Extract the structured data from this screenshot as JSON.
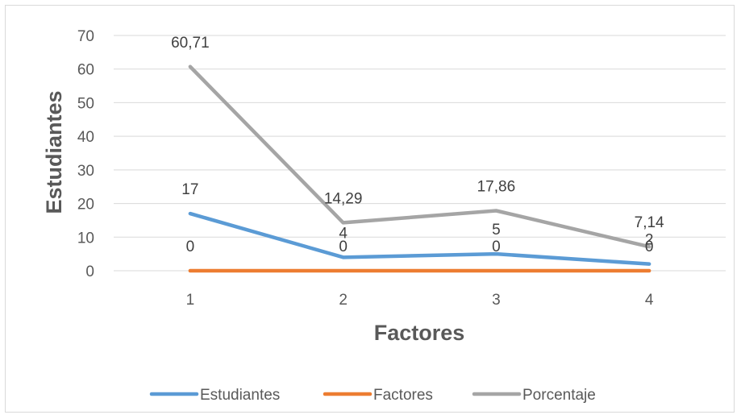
{
  "chart_data": {
    "type": "line",
    "categories": [
      "1",
      "2",
      "3",
      "4"
    ],
    "series": [
      {
        "name": "Estudiantes",
        "values": [
          17,
          4,
          5,
          2
        ],
        "labels": [
          "17",
          "4",
          "5",
          "2"
        ],
        "color": "#5B9BD5"
      },
      {
        "name": "Factores",
        "values": [
          0,
          0,
          0,
          0
        ],
        "labels": [
          "0",
          "0",
          "0",
          "0"
        ],
        "color": "#ED7D31"
      },
      {
        "name": "Porcentaje",
        "values": [
          60.71,
          14.29,
          17.86,
          7.14
        ],
        "labels": [
          "60,71",
          "14,29",
          "17,86",
          "7,14"
        ],
        "color": "#A5A5A5"
      }
    ],
    "xlabel": "Factores",
    "ylabel": "Estudiantes",
    "ylim": [
      0,
      70
    ],
    "yticks": [
      "0",
      "10",
      "20",
      "30",
      "40",
      "50",
      "60",
      "70"
    ],
    "grid": true,
    "legend": "bottom"
  }
}
